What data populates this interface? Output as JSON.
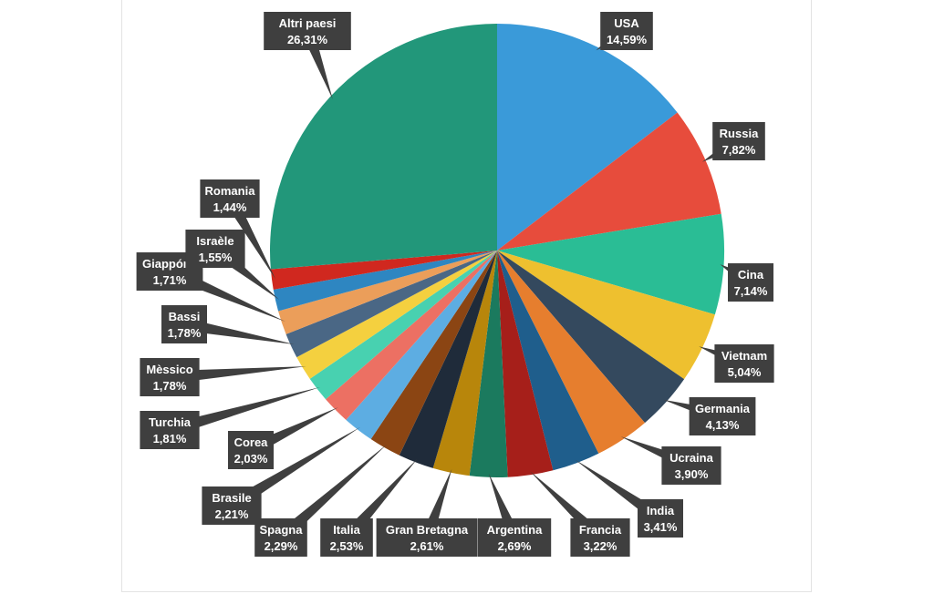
{
  "chart_data": {
    "type": "pie",
    "title": "",
    "start_angle_deg": 0,
    "direction": "clockwise",
    "slices": [
      {
        "label": "USA",
        "value_text": "14,59%",
        "value": 14.59,
        "color": "#3a9ad9"
      },
      {
        "label": "Russia",
        "value_text": "7,82%",
        "value": 7.82,
        "color": "#e74c3c"
      },
      {
        "label": "Cina",
        "value_text": "7,14%",
        "value": 7.14,
        "color": "#2abd95"
      },
      {
        "label": "Vietnam",
        "value_text": "5,04%",
        "value": 5.04,
        "color": "#eec02f"
      },
      {
        "label": "Germania",
        "value_text": "4,13%",
        "value": 4.13,
        "color": "#34495e"
      },
      {
        "label": "Ucraina",
        "value_text": "3,90%",
        "value": 3.9,
        "color": "#e67e2e"
      },
      {
        "label": "India",
        "value_text": "3,41%",
        "value": 3.41,
        "color": "#1f5e8c"
      },
      {
        "label": "Francia",
        "value_text": "3,22%",
        "value": 3.22,
        "color": "#a61f1a"
      },
      {
        "label": "Argentina",
        "value_text": "2,69%",
        "value": 2.69,
        "color": "#1b7a5e"
      },
      {
        "label": "Gran Bretagna",
        "value_text": "2,61%",
        "value": 2.61,
        "color": "#b8860b"
      },
      {
        "label": "Italia",
        "value_text": "2,53%",
        "value": 2.53,
        "color": "#1f2b3a"
      },
      {
        "label": "Spagna",
        "value_text": "2,29%",
        "value": 2.29,
        "color": "#8b4513"
      },
      {
        "label": "Brasile",
        "value_text": "2,21%",
        "value": 2.21,
        "color": "#5dade2"
      },
      {
        "label": "Corea",
        "value_text": "2,03%",
        "value": 2.03,
        "color": "#ec7063"
      },
      {
        "label": "Turchia",
        "value_text": "1,81%",
        "value": 1.81,
        "color": "#48d1b0"
      },
      {
        "label": "Mèssico",
        "value_text": "1,78%",
        "value": 1.78,
        "color": "#f4d03f"
      },
      {
        "label": "Bassi",
        "value_text": "1,78%",
        "value": 1.78,
        "color": "#4a6785"
      },
      {
        "label": "Giappóne",
        "value_text": "1,71%",
        "value": 1.71,
        "color": "#eb9e5a"
      },
      {
        "label": "Israèle",
        "value_text": "1,55%",
        "value": 1.55,
        "color": "#2e86c1"
      },
      {
        "label": "Romania",
        "value_text": "1,44%",
        "value": 1.44,
        "color": "#d0281f"
      },
      {
        "label": "Altri paesi",
        "value_text": "26,31%",
        "value": 26.31,
        "color": "#22977a"
      }
    ]
  }
}
